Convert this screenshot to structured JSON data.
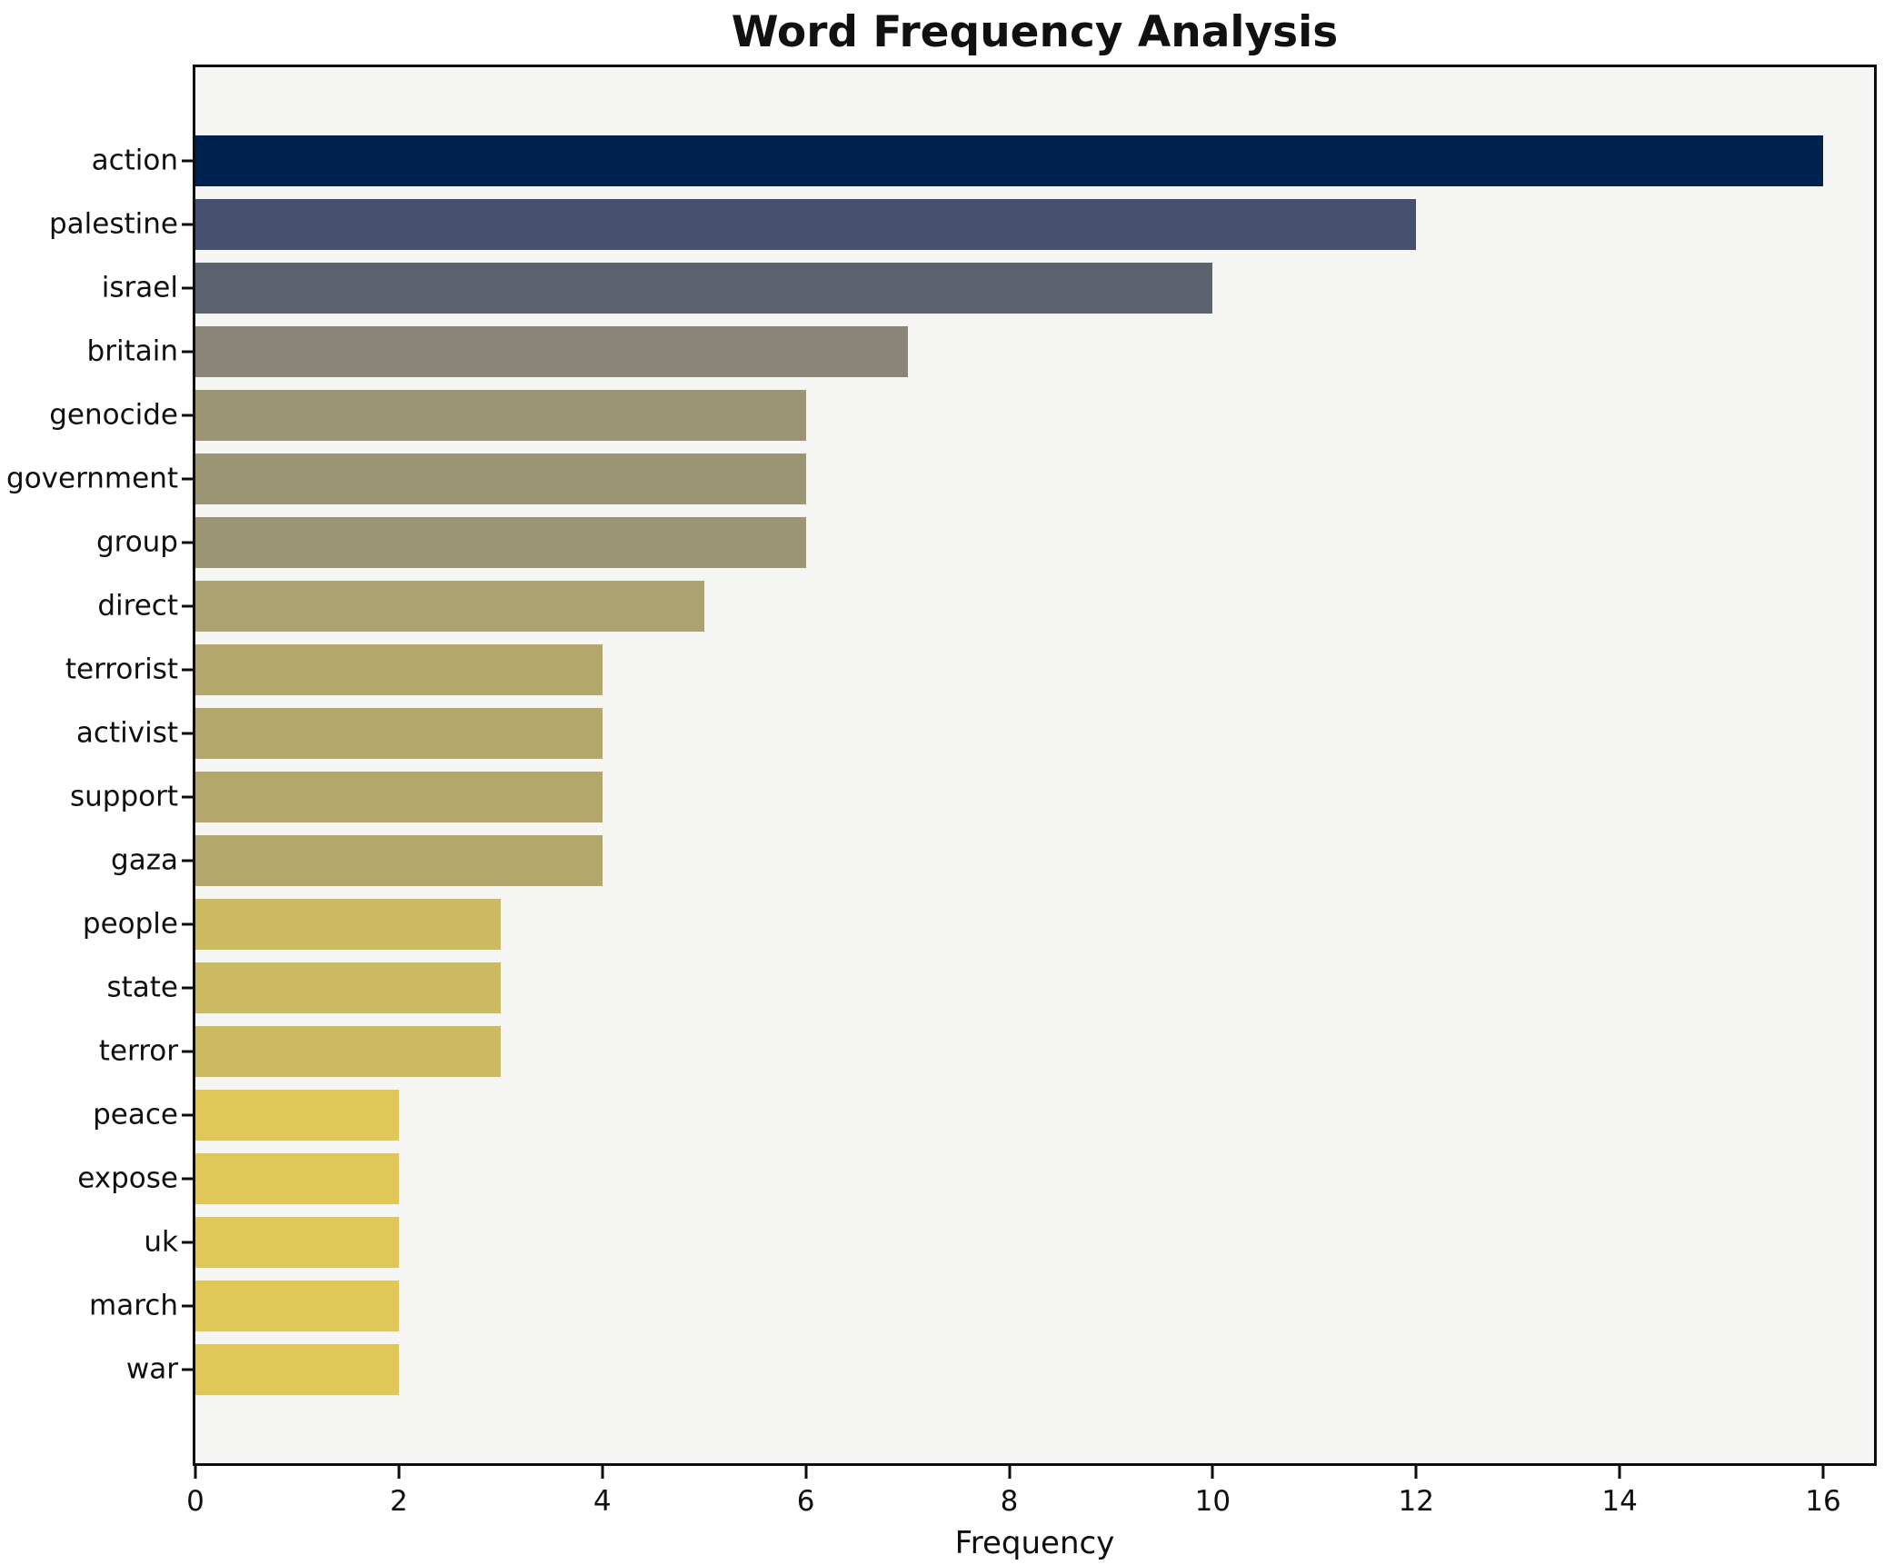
{
  "figure": {
    "title": "Word Frequency Analysis",
    "xlabel": "Frequency"
  },
  "chart_data": {
    "type": "bar",
    "orientation": "horizontal",
    "title": "Word Frequency Analysis",
    "xlabel": "Frequency",
    "ylabel": "",
    "categories": [
      "action",
      "palestine",
      "israel",
      "britain",
      "genocide",
      "government",
      "group",
      "direct",
      "terrorist",
      "activist",
      "support",
      "gaza",
      "people",
      "state",
      "terror",
      "peace",
      "expose",
      "uk",
      "march",
      "war"
    ],
    "values": [
      16,
      12,
      10,
      7,
      6,
      6,
      6,
      5,
      4,
      4,
      4,
      4,
      3,
      3,
      3,
      2,
      2,
      2,
      2,
      2
    ],
    "bar_colors": [
      "#00224e",
      "#454f6e",
      "#5d626f",
      "#8a8578",
      "#9b9575",
      "#9b9575",
      "#9b9575",
      "#aba171",
      "#b3a76e",
      "#b3a76e",
      "#b3a76e",
      "#b3a76e",
      "#ccba62",
      "#ccba62",
      "#ccba62",
      "#dfc858",
      "#dfc858",
      "#dfc858",
      "#dfc858",
      "#dfc858"
    ],
    "x_ticks": [
      0,
      2,
      4,
      6,
      8,
      10,
      12,
      14,
      16
    ],
    "xlim": [
      0,
      16.5
    ],
    "grid": false,
    "legend_position": "none",
    "plot_bg": "#f5f5f3",
    "spine_color": "#0d0d0d",
    "colormap": "cividis"
  }
}
